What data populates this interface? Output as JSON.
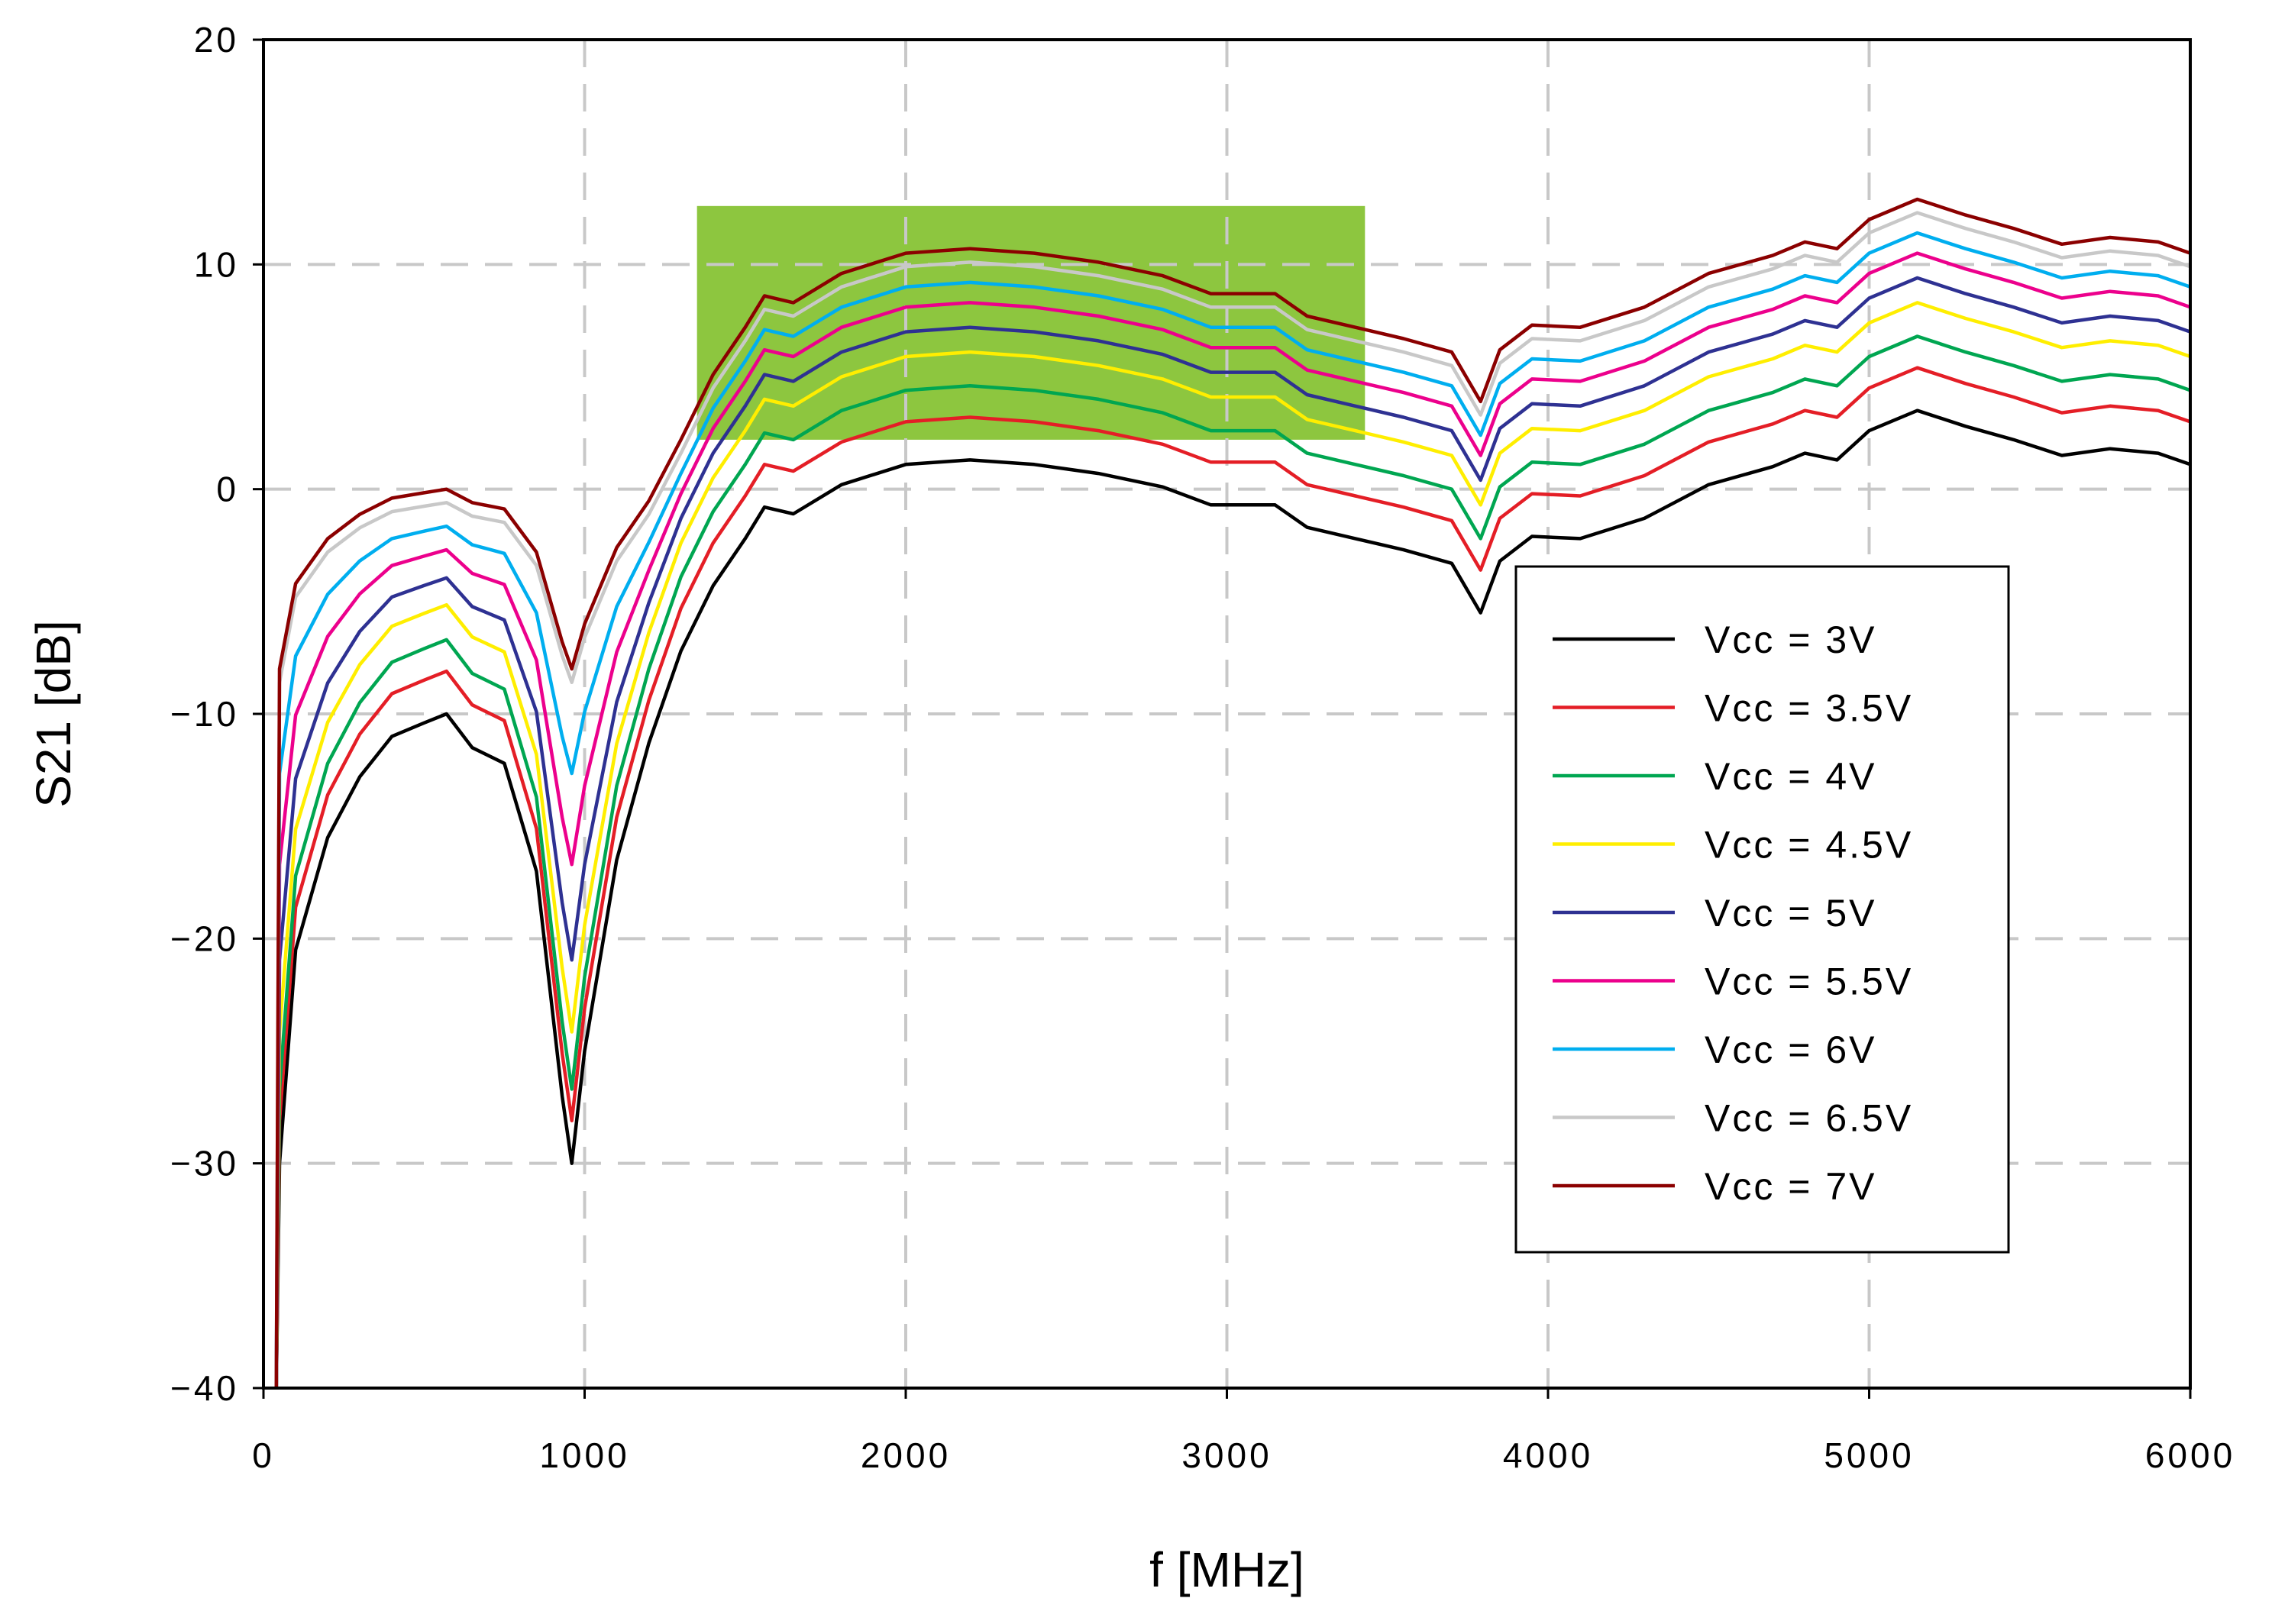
{
  "chart_data": {
    "type": "line",
    "title": "",
    "xlabel": "f [MHz]",
    "ylabel": "S21 [dB]",
    "xlim": [
      0,
      6000
    ],
    "ylim": [
      -40,
      20
    ],
    "xticks": [
      "0",
      "1000",
      "2000",
      "3000",
      "4000",
      "5000",
      "6000"
    ],
    "yticks": [
      "20",
      "10",
      "0",
      "−10",
      "−20",
      "−30",
      "−40"
    ],
    "xtick_values": [
      0,
      1000,
      2000,
      3000,
      4000,
      5000,
      6000
    ],
    "ytick_values": [
      20,
      10,
      0,
      -10,
      -20,
      -30,
      -40
    ],
    "grid": true,
    "legend_position": "right",
    "highlight_region": {
      "x": [
        1350,
        3430
      ],
      "y": [
        2.2,
        12.6
      ],
      "color": "#8dc63f"
    },
    "x": [
      40,
      50,
      100,
      200,
      300,
      400,
      500,
      570,
      650,
      750,
      850,
      930,
      960,
      1000,
      1100,
      1200,
      1300,
      1400,
      1500,
      1560,
      1650,
      1800,
      2000,
      2200,
      2400,
      2600,
      2800,
      2950,
      3050,
      3150,
      3250,
      3400,
      3550,
      3700,
      3790,
      3850,
      3950,
      4100,
      4300,
      4500,
      4700,
      4800,
      4900,
      5000,
      5150,
      5300,
      5450,
      5600,
      5750,
      5900,
      6000
    ],
    "base": [
      -40,
      -30,
      -20.5,
      -15.5,
      -12.8,
      -11,
      -10.4,
      -10,
      -11.5,
      -12.2,
      -17,
      -27,
      -30,
      -25,
      -16.5,
      -11.3,
      -7.2,
      -4.3,
      -2.2,
      -0.8,
      -1.1,
      0.2,
      1.1,
      1.3,
      1.1,
      0.7,
      0.1,
      -0.7,
      -0.7,
      -0.7,
      -1.7,
      -2.2,
      -2.7,
      -3.3,
      -5.5,
      -3.2,
      -2.1,
      -2.2,
      -1.3,
      0.2,
      1,
      1.6,
      1.3,
      2.6,
      3.5,
      2.8,
      2.2,
      1.5,
      1.8,
      1.6,
      1.1
    ],
    "series": [
      {
        "name": "Vcc = 3V",
        "color": "#000000",
        "offset": 0,
        "damp": 0
      },
      {
        "name": "Vcc = 3.5V",
        "color": "#e41e26",
        "offset": 1.9,
        "damp": 0
      },
      {
        "name": "Vcc = 4V",
        "color": "#00a651",
        "offset": 3.3,
        "damp": 0
      },
      {
        "name": "Vcc = 4.5V",
        "color": "#ffee00",
        "offset": 4.8,
        "damp": 0.05
      },
      {
        "name": "Vcc = 5V",
        "color": "#2e3192",
        "offset": 5.9,
        "damp": 0.15
      },
      {
        "name": "Vcc = 5.5V",
        "color": "#ec008c",
        "offset": 7.0,
        "damp": 0.3
      },
      {
        "name": "Vcc = 6V",
        "color": "#00aeef",
        "offset": 7.9,
        "damp": 0.45
      },
      {
        "name": "Vcc = 6.5V",
        "color": "#c8c8c8",
        "offset": 8.8,
        "damp": 0.6
      },
      {
        "name": "Vcc = 7V",
        "color": "#8b0000",
        "offset": 9.4,
        "damp": 0.6
      }
    ]
  }
}
